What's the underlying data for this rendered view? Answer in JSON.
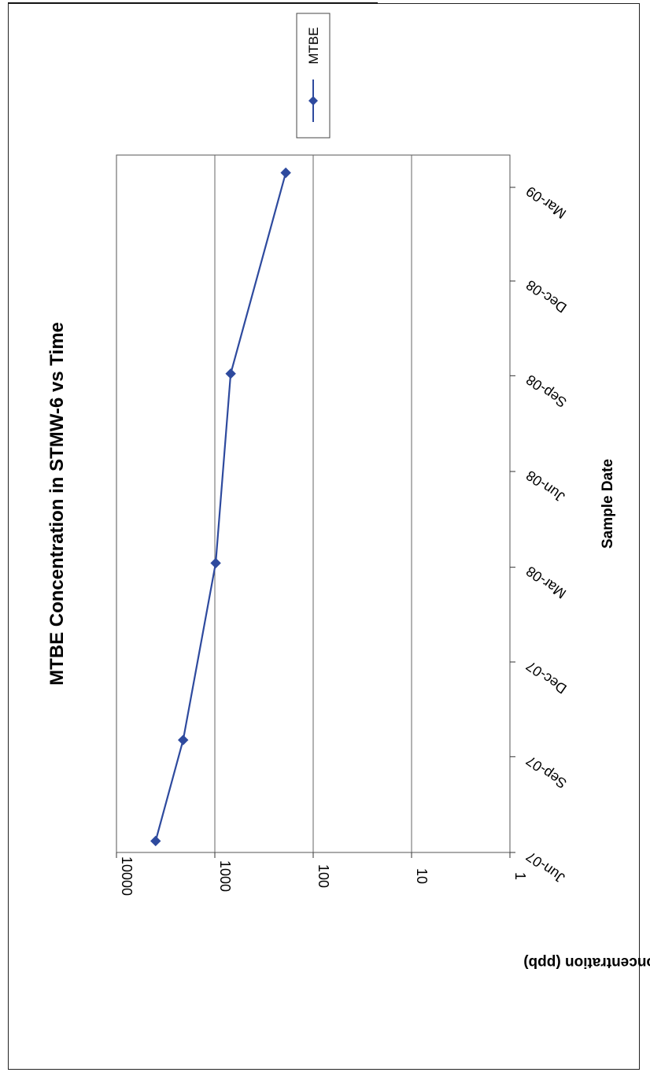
{
  "chart_data": {
    "type": "line",
    "title": "MTBE Concentration in STMW-6 vs Time",
    "xlabel": "Sample Date",
    "ylabel": "Concentration (ppb)",
    "yscale": "log",
    "ylim": [
      1,
      10000
    ],
    "yticks": [
      "10000",
      "1000",
      "100",
      "10",
      "1"
    ],
    "xlim": [
      "2007-06-01",
      "2009-04-01"
    ],
    "xticks": [
      "Jun-07",
      "Sep-07",
      "Dec-07",
      "Mar-08",
      "Jun-08",
      "Sep-08",
      "Dec-08",
      "Mar-09"
    ],
    "grid": "major y",
    "legend": "top-right",
    "orientation": "rotated 90° clockwise on page",
    "series": [
      {
        "name": "MTBE",
        "color": "#2E4A9E",
        "marker": "diamond",
        "points": [
          {
            "x": "2007-06-12",
            "y": 4000
          },
          {
            "x": "2007-09-17",
            "y": 2100
          },
          {
            "x": "2008-03-05",
            "y": 980
          },
          {
            "x": "2008-09-03",
            "y": 690
          },
          {
            "x": "2009-03-15",
            "y": 190
          }
        ]
      }
    ]
  }
}
